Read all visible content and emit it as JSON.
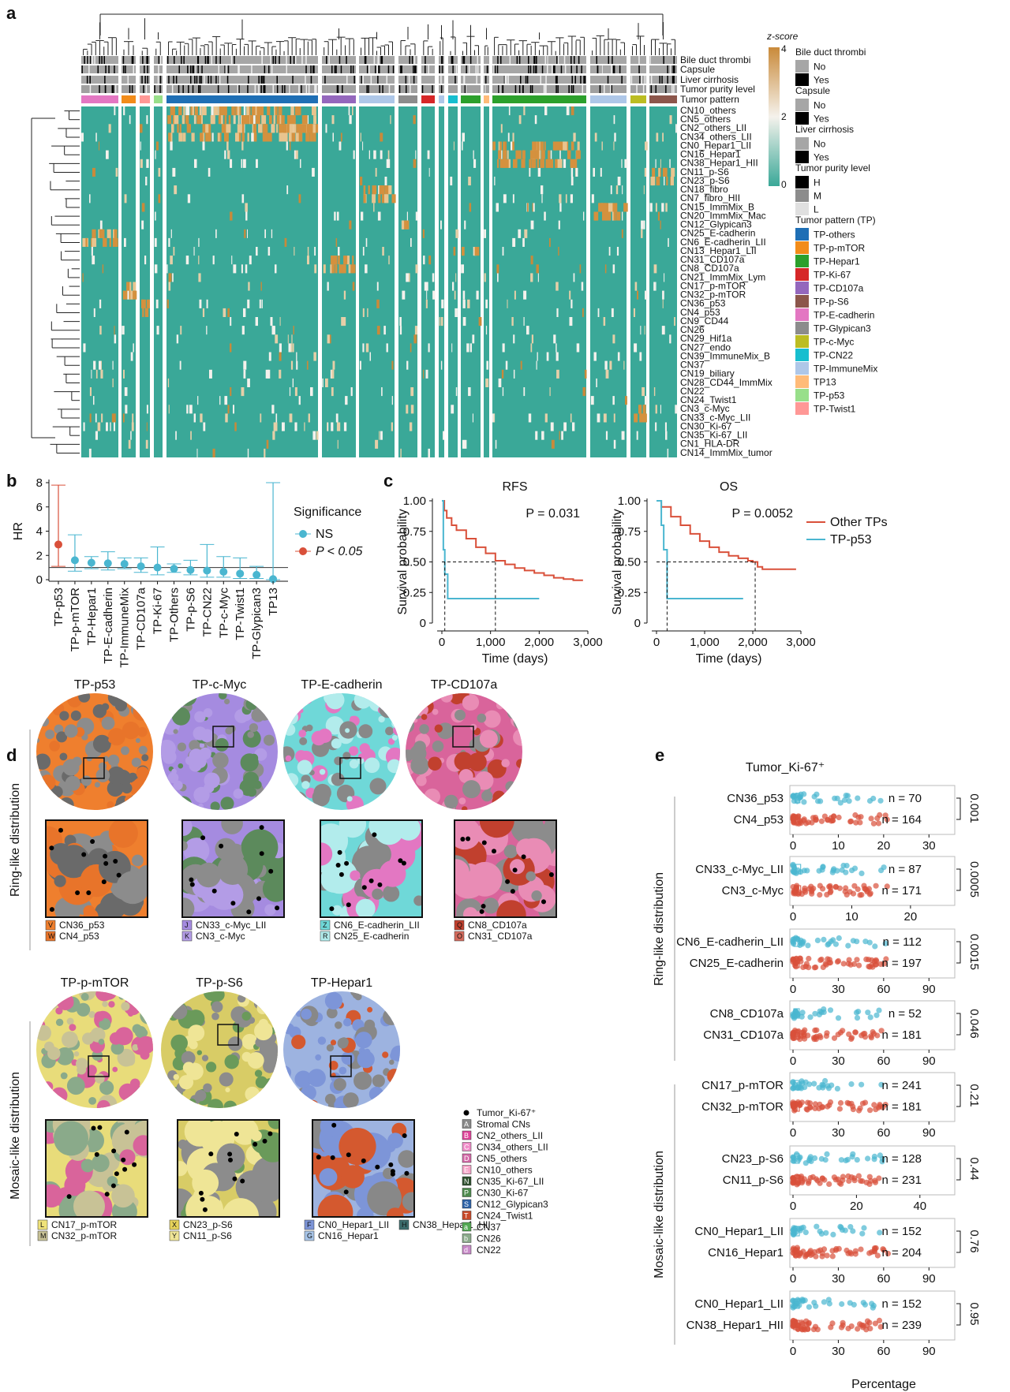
{
  "panels": {
    "a": "a",
    "b": "b",
    "c": "c",
    "d": "d",
    "e": "e"
  },
  "heatmap": {
    "rows": [
      "CN10_others",
      "CN5_others",
      "CN2_others_LII",
      "CN34_others_LII",
      "CN0_Hepar1_LII",
      "CN16_Hepar1",
      "CN38_Hepar1_HII",
      "CN11_p-S6",
      "CN23_p-S6",
      "CN18_fibro",
      "CN7_fibro_HII",
      "CN15_ImmMix_B",
      "CN20_ImmMix_Mac",
      "CN12_Glypican3",
      "CN25_E-cadherin",
      "CN6_E-cadherin_LII",
      "CN13_Hepar1_LII",
      "CN31_CD107a",
      "CN8_CD107a",
      "CN21_ImmMix_Lym",
      "CN17_p-mTOR",
      "CN32_p-mTOR",
      "CN36_p53",
      "CN4_p53",
      "CN9_CD44",
      "CN26",
      "CN29_Hif1a",
      "CN27_endo",
      "CN39_ImmuneMix_B",
      "CN37",
      "CN19_biliary",
      "CN28_CD44_ImmMix",
      "CN22",
      "CN24_Twist1",
      "CN3_c-Myc",
      "CN33_c-Myc_LII",
      "CN30_Ki-67",
      "CN35_Ki-67_LII",
      "CN1_HLA-DR",
      "CN14_ImmMix_tumor"
    ],
    "annotation_rows": [
      "Bile duct thrombi",
      "Capsule",
      "Liver cirrhosis",
      "Tumor purity level",
      "Tumor pattern"
    ],
    "legend": {
      "zscore_title": "z-score",
      "zscore_ticks": [
        "4",
        "2",
        "0"
      ],
      "groups": [
        {
          "title": "Bile duct thrombi",
          "items": [
            {
              "label": "No",
              "color": "#a6a6a6"
            },
            {
              "label": "Yes",
              "color": "#000000"
            }
          ]
        },
        {
          "title": "Capsule",
          "items": [
            {
              "label": "No",
              "color": "#a6a6a6"
            },
            {
              "label": "Yes",
              "color": "#000000"
            }
          ]
        },
        {
          "title": "Liver cirrhosis",
          "items": [
            {
              "label": "No",
              "color": "#a6a6a6"
            },
            {
              "label": "Yes",
              "color": "#000000"
            }
          ]
        },
        {
          "title": "Tumor purity level",
          "items": [
            {
              "label": "H",
              "color": "#000000"
            },
            {
              "label": "M",
              "color": "#8c8c8c"
            },
            {
              "label": "L",
              "color": "#e0e0e0"
            }
          ]
        },
        {
          "title": "Tumor pattern (TP)",
          "items": [
            {
              "label": "TP-others",
              "color": "#1f6fb5"
            },
            {
              "label": "TP-p-mTOR",
              "color": "#f28c1a"
            },
            {
              "label": "TP-Hepar1",
              "color": "#2ca02c"
            },
            {
              "label": "TP-Ki-67",
              "color": "#d62728"
            },
            {
              "label": "TP-CD107a",
              "color": "#9467bd"
            },
            {
              "label": "TP-p-S6",
              "color": "#8c564b"
            },
            {
              "label": "TP-E-cadherin",
              "color": "#e377c2"
            },
            {
              "label": "TP-Glypican3",
              "color": "#8c8c8c"
            },
            {
              "label": "TP-c-Myc",
              "color": "#bcbd22"
            },
            {
              "label": "TP-CN22",
              "color": "#17becf"
            },
            {
              "label": "TP-ImmuneMix",
              "color": "#aec7e8"
            },
            {
              "label": "TP13",
              "color": "#ffbb78"
            },
            {
              "label": "TP-p53",
              "color": "#98df8a"
            },
            {
              "label": "TP-Twist1",
              "color": "#ff9896"
            }
          ]
        }
      ]
    }
  },
  "chart_data": [
    {
      "type": "scatter",
      "ylabel": "HR",
      "ylim": [
        0,
        8
      ],
      "yticks": [
        "0",
        "2",
        "4",
        "6",
        "8"
      ],
      "categories": [
        "TP-p53",
        "TP-p-mTOR",
        "TP-Hepar1",
        "TP-E-cadherin",
        "TP-ImmuneMix",
        "TP-CD107a",
        "TP-Ki-67",
        "TP-Others",
        "TP-p-S6",
        "TP-CN22",
        "TP-c-Myc",
        "TP-Twist1",
        "TP-Glypican3",
        "TP13"
      ],
      "values": [
        2.9,
        1.6,
        1.4,
        1.35,
        1.3,
        1.1,
        1.0,
        0.9,
        0.8,
        0.75,
        0.65,
        0.5,
        0.4,
        0.05
      ],
      "ci_low": [
        1.1,
        0.7,
        0.9,
        0.8,
        0.9,
        0.6,
        0.4,
        0.6,
        0.4,
        0.2,
        0.2,
        0.1,
        0.1,
        0.0
      ],
      "ci_high": [
        7.8,
        3.7,
        1.9,
        2.3,
        1.8,
        1.8,
        2.7,
        1.3,
        1.6,
        2.9,
        1.9,
        1.8,
        1.1,
        8.0
      ],
      "significant": [
        true,
        false,
        false,
        false,
        false,
        false,
        false,
        false,
        false,
        false,
        false,
        false,
        false,
        false
      ],
      "reference_line": 1,
      "legend": {
        "title": "Significance",
        "items": [
          {
            "label": "NS",
            "color": "#4ab6d0"
          },
          {
            "label": "P < 0.05",
            "color": "#d9503a"
          }
        ]
      }
    },
    {
      "type": "line",
      "title": "RFS",
      "xlabel": "Time (days)",
      "ylabel": "Survival probability",
      "xlim": [
        0,
        3000
      ],
      "ylim": [
        0,
        1
      ],
      "xticks": [
        "0",
        "1,000",
        "2,000",
        "3,000"
      ],
      "yticks": [
        "0",
        "0.25",
        "0.50",
        "0.75",
        "1.00"
      ],
      "pvalue": "P = 0.031",
      "series": [
        {
          "name": "Other TPs",
          "x": [
            0,
            50,
            100,
            200,
            300,
            500,
            700,
            900,
            1100,
            1300,
            1500,
            1700,
            1900,
            2100,
            2300,
            2500,
            2700,
            2900
          ],
          "y": [
            1.0,
            0.92,
            0.86,
            0.8,
            0.76,
            0.69,
            0.62,
            0.57,
            0.51,
            0.48,
            0.45,
            0.43,
            0.41,
            0.39,
            0.37,
            0.36,
            0.35,
            0.35
          ]
        },
        {
          "name": "TP-p53",
          "x": [
            0,
            30,
            60,
            120,
            2000
          ],
          "y": [
            1.0,
            0.6,
            0.4,
            0.2,
            0.2
          ]
        }
      ],
      "median_lines": [
        60,
        1100
      ]
    },
    {
      "type": "line",
      "title": "OS",
      "xlabel": "Time (days)",
      "ylabel": "Survival probability",
      "xlim": [
        0,
        3000
      ],
      "ylim": [
        0,
        1
      ],
      "xticks": [
        "0",
        "1,000",
        "2,000",
        "3,000"
      ],
      "yticks": [
        "0",
        "0.25",
        "0.50",
        "0.75",
        "1.00"
      ],
      "pvalue": "P = 0.0052",
      "series": [
        {
          "name": "Other TPs",
          "x": [
            0,
            100,
            300,
            500,
            700,
            900,
            1100,
            1300,
            1500,
            1700,
            1900,
            2000,
            2100,
            2200,
            2500,
            2800,
            2900
          ],
          "y": [
            1.0,
            0.95,
            0.87,
            0.8,
            0.73,
            0.67,
            0.62,
            0.58,
            0.55,
            0.53,
            0.51,
            0.5,
            0.46,
            0.44,
            0.44,
            0.44,
            0.44
          ]
        },
        {
          "name": "TP-p53",
          "x": [
            0,
            100,
            150,
            220,
            1800
          ],
          "y": [
            1.0,
            0.8,
            0.6,
            0.2,
            0.2
          ]
        }
      ],
      "median_lines": [
        220,
        2050
      ]
    }
  ],
  "legend_c": [
    {
      "label": "Other TPs",
      "color": "#d9503a"
    },
    {
      "label": "TP-p53",
      "color": "#4ab6d0"
    }
  ],
  "panel_d": {
    "side_ring": "Ring-like distribution",
    "side_mosaic": "Mosaic-like distribution",
    "images": [
      {
        "title": "TP-p53",
        "legend": [
          {
            "key": "V",
            "label": "CN36_p53",
            "color": "#ef7f2e"
          },
          {
            "key": "W",
            "label": "CN4_p53",
            "color": "#e8742a"
          }
        ]
      },
      {
        "title": "TP-c-Myc",
        "legend": [
          {
            "key": "J",
            "label": "CN33_c-Myc_LII",
            "color": "#a58be0"
          },
          {
            "key": "K",
            "label": "CN3_c-Myc",
            "color": "#b39ce6"
          }
        ]
      },
      {
        "title": "TP-E-cadherin",
        "legend": [
          {
            "key": "Z",
            "label": "CN6_E-cadherin_LII",
            "color": "#6fd8d8"
          },
          {
            "key": "R",
            "label": "CN25_E-cadherin",
            "color": "#b2ecec"
          }
        ]
      },
      {
        "title": "TP-CD107a",
        "legend": [
          {
            "key": "Q",
            "label": "CN8_CD107a",
            "color": "#c1402e"
          },
          {
            "key": "O",
            "label": "CN31_CD107a",
            "color": "#d46a5c"
          }
        ]
      },
      {
        "title": "TP-p-mTOR",
        "legend": [
          {
            "key": "L",
            "label": "CN17_p-mTOR",
            "color": "#f0e37a"
          },
          {
            "key": "M",
            "label": "CN32_p-mTOR",
            "color": "#c8c296"
          }
        ]
      },
      {
        "title": "TP-p-S6",
        "legend": [
          {
            "key": "X",
            "label": "CN23_p-S6",
            "color": "#e6d25a"
          },
          {
            "key": "Y",
            "label": "CN11_p-S6",
            "color": "#efe596"
          }
        ]
      },
      {
        "title": "TP-Hepar1",
        "legend": [
          {
            "key": "F",
            "label": "CN0_Hepar1_LII",
            "color": "#7d95d8"
          },
          {
            "key": "G",
            "label": "CN16_Hepar1",
            "color": "#a7c4e8"
          },
          {
            "key": "H",
            "label": "CN38_Hepar1_HII",
            "color": "#3c6d6d"
          }
        ]
      }
    ],
    "key": [
      {
        "key": "",
        "label": "Tumor_Ki-67⁺",
        "color": "#000000"
      },
      {
        "key": "A",
        "label": "Stromal CNs",
        "color": "#888888"
      },
      {
        "key": "B",
        "label": "CN2_others_LII",
        "color": "#e0449a"
      },
      {
        "key": "C",
        "label": "CN34_others_LII",
        "color": "#f08cc8"
      },
      {
        "key": "D",
        "label": "CN5_others",
        "color": "#d46aa8"
      },
      {
        "key": "E",
        "label": "CN10_others",
        "color": "#f5a3c7"
      },
      {
        "key": "N",
        "label": "CN35_Ki-67_LII",
        "color": "#2e4f2e"
      },
      {
        "key": "P",
        "label": "CN30_Ki-67",
        "color": "#4d8a4d"
      },
      {
        "key": "S",
        "label": "CN12_Glypican3",
        "color": "#2e63a8"
      },
      {
        "key": "T",
        "label": "CN24_Twist1",
        "color": "#c84a2a"
      },
      {
        "key": "a",
        "label": "CN37",
        "color": "#52a852"
      },
      {
        "key": "b",
        "label": "CN26",
        "color": "#8aaa8a"
      },
      {
        "key": "d",
        "label": "CN22",
        "color": "#c88ac8"
      }
    ]
  },
  "panel_e": {
    "title": "Tumor_Ki-67⁺",
    "xlabel": "Percentage",
    "side_ring": "Ring-like distribution",
    "side_mosaic": "Mosaic-like distribution",
    "groups": [
      {
        "rows": [
          {
            "label": "CN36_p53",
            "n": "n = 70"
          },
          {
            "label": "CN4_p53",
            "n": "n = 164"
          }
        ],
        "p": "0.001",
        "xticks": [
          "0",
          "10",
          "20",
          "30"
        ],
        "xmax": 35
      },
      {
        "rows": [
          {
            "label": "CN33_c-Myc_LII",
            "n": "n = 87"
          },
          {
            "label": "CN3_c-Myc",
            "n": "n = 171"
          }
        ],
        "p": "0.0005",
        "xticks": [
          "0",
          "10",
          "20"
        ],
        "xmax": 27
      },
      {
        "rows": [
          {
            "label": "CN6_E-cadherin_LII",
            "n": "n = 112"
          },
          {
            "label": "CN25_E-cadherin",
            "n": "n = 197"
          }
        ],
        "p": "0.0015",
        "xticks": [
          "0",
          "30",
          "60",
          "90"
        ],
        "xmax": 105
      },
      {
        "rows": [
          {
            "label": "CN8_CD107a",
            "n": "n = 52"
          },
          {
            "label": "CN31_CD107a",
            "n": "n = 181"
          }
        ],
        "p": "0.046",
        "xticks": [
          "0",
          "30",
          "60",
          "90"
        ],
        "xmax": 105
      },
      {
        "rows": [
          {
            "label": "CN17_p-mTOR",
            "n": "n = 241"
          },
          {
            "label": "CN32_p-mTOR",
            "n": "n = 181"
          }
        ],
        "p": "0.21",
        "xticks": [
          "0",
          "30",
          "60",
          "90"
        ],
        "xmax": 105
      },
      {
        "rows": [
          {
            "label": "CN23_p-S6",
            "n": "n = 128"
          },
          {
            "label": "CN11_p-S6",
            "n": "n = 231"
          }
        ],
        "p": "0.44",
        "xticks": [
          "0",
          "20",
          "40"
        ],
        "xmax": 50
      },
      {
        "rows": [
          {
            "label": "CN0_Hepar1_LII",
            "n": "n = 152"
          },
          {
            "label": "CN16_Hepar1",
            "n": "n = 204"
          }
        ],
        "p": "0.76",
        "xticks": [
          "0",
          "30",
          "60",
          "90"
        ],
        "xmax": 105
      },
      {
        "rows": [
          {
            "label": "CN0_Hepar1_LII",
            "n": "n = 152"
          },
          {
            "label": "CN38_Hepar1_HII",
            "n": "n = 239"
          }
        ],
        "p": "0.95",
        "xticks": [
          "0",
          "30",
          "60",
          "90"
        ],
        "xmax": 105
      }
    ]
  }
}
